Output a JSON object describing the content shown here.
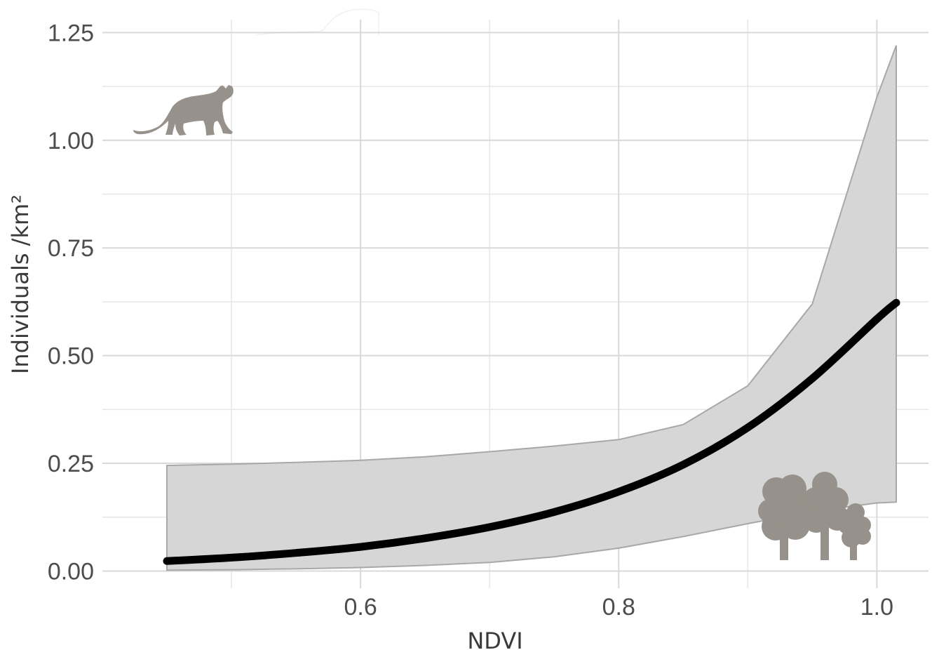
{
  "chart_data": {
    "type": "line",
    "xlabel": "NDVI",
    "ylabel": "Individuals /km²",
    "xlim": [
      0.4,
      1.04
    ],
    "ylim": [
      -0.04,
      1.28
    ],
    "x_ticks": [
      0.6,
      0.8,
      1.0
    ],
    "x_tick_labels": [
      "0.6",
      "0.8",
      "1.0"
    ],
    "y_ticks": [
      0,
      0.25,
      0.5,
      0.75,
      1.0,
      1.25
    ],
    "y_tick_labels": [
      "0.00",
      "0.25",
      "0.50",
      "0.75",
      "1.00",
      "1.25"
    ],
    "grid": true,
    "series": [
      {
        "x": [
          0.45,
          0.5,
          0.55,
          0.6,
          0.65,
          0.7,
          0.75,
          0.8,
          0.85,
          0.9,
          0.95,
          1.0,
          1.015
        ],
        "y": [
          0.023,
          0.031,
          0.042,
          0.056,
          0.076,
          0.102,
          0.137,
          0.184,
          0.247,
          0.333,
          0.447,
          0.585,
          0.623
        ],
        "lower": [
          0.002,
          0.003,
          0.005,
          0.008,
          0.013,
          0.02,
          0.033,
          0.053,
          0.08,
          0.11,
          0.138,
          0.158,
          0.16
        ],
        "upper": [
          0.245,
          0.248,
          0.252,
          0.257,
          0.265,
          0.277,
          0.29,
          0.305,
          0.34,
          0.43,
          0.62,
          1.1,
          1.22
        ]
      }
    ],
    "colors": {
      "line": "#000000",
      "ribbon_fill": "#d6d6d6",
      "ribbon_edge": "#a8a8a8",
      "silhouette": "#96928b"
    },
    "icons": [
      "cat-silhouette-icon",
      "trees-silhouette-icon"
    ]
  }
}
